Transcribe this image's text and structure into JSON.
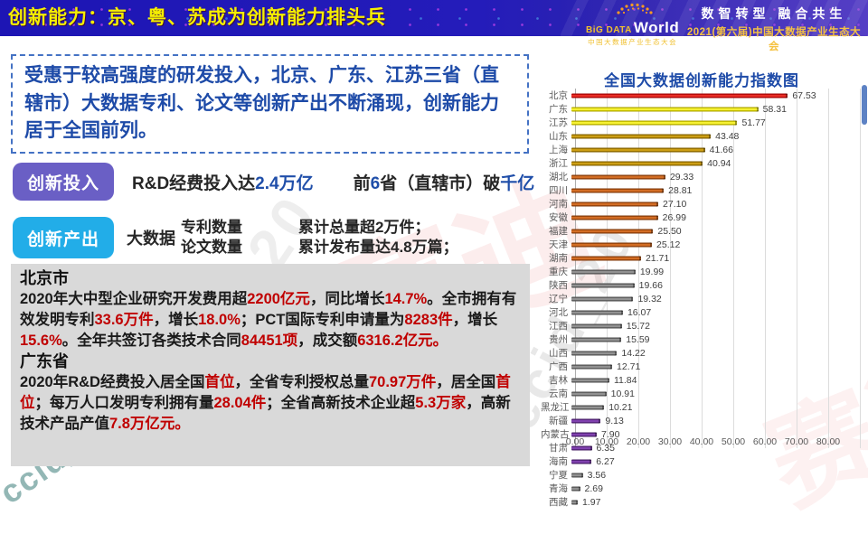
{
  "header": {
    "title": "创新能力：京、粤、苏成为创新能力排头兵",
    "logo": {
      "name_top": "BiG DATA",
      "name_main": "World",
      "subtitle": "中国大数据产业生态大会"
    },
    "slogan": "数智转型 融合共生",
    "event": "2021(第六届)中国大数据产业生态大会"
  },
  "summary": {
    "text": "受惠于较高强度的研发投入，北京、广东、江苏三省（直辖市）大数据专利、论文等创新产出不断涌现，创新能力居于全国前列。"
  },
  "investment": {
    "badge": "创新投入",
    "part1": [
      {
        "t": "R&D经费投入达"
      },
      {
        "t": "2.4万亿",
        "s": "blue"
      }
    ],
    "part2": [
      {
        "t": "前"
      },
      {
        "t": "6",
        "s": "blue"
      },
      {
        "t": "省（直辖市）破"
      },
      {
        "t": "千亿",
        "s": "blue"
      }
    ]
  },
  "output": {
    "badge": "创新产出",
    "prefix": "大数据",
    "metrics": [
      "专利数量",
      "论文数量"
    ],
    "results": [
      "累计总量超2万件；",
      "累计发布量达4.8万篇；"
    ]
  },
  "detail_box": {
    "beijing_title": "北京市",
    "beijing": [
      {
        "t": "2020年大中型企业研究开发费用超"
      },
      {
        "t": "2200亿元",
        "s": "red"
      },
      {
        "t": "，同比增长"
      },
      {
        "t": "14.7%",
        "s": "red"
      },
      {
        "t": "。全市拥有有效发明专利"
      },
      {
        "t": "33.6万件",
        "s": "red"
      },
      {
        "t": "，增长"
      },
      {
        "t": "18.0%",
        "s": "red"
      },
      {
        "t": "；PCT国际专利申请量为"
      },
      {
        "t": "8283件",
        "s": "red"
      },
      {
        "t": "，增长"
      },
      {
        "t": "15.6%",
        "s": "red"
      },
      {
        "t": "。全年共签订各类技术合同"
      },
      {
        "t": "84451项",
        "s": "red"
      },
      {
        "t": "，成交额"
      },
      {
        "t": "6316.2亿元。",
        "s": "red"
      }
    ],
    "guangdong_title": "广东省",
    "guangdong": [
      {
        "t": "2020年R&D经费投入居全国"
      },
      {
        "t": "首位",
        "s": "red"
      },
      {
        "t": "，全省专利授权总量"
      },
      {
        "t": "70.97万件",
        "s": "red"
      },
      {
        "t": "，居全国"
      },
      {
        "t": "首位",
        "s": "red"
      },
      {
        "t": "；每万人口发明专利拥有量"
      },
      {
        "t": "28.04件",
        "s": "red"
      },
      {
        "t": "；全省高新技术企业超"
      },
      {
        "t": "5.3万家",
        "s": "red"
      },
      {
        "t": "，高新技术产品产值"
      },
      {
        "t": "7.8万亿元。",
        "s": "red"
      }
    ]
  },
  "chart_data": {
    "type": "bar",
    "orientation": "horizontal",
    "title": "全国大数据创新能力指数图",
    "categories": [
      "北京",
      "广东",
      "江苏",
      "山东",
      "上海",
      "浙江",
      "湖北",
      "四川",
      "河南",
      "安徽",
      "福建",
      "天津",
      "湖南",
      "重庆",
      "陕西",
      "辽宁",
      "河北",
      "江西",
      "贵州",
      "山西",
      "广西",
      "吉林",
      "云南",
      "黑龙江",
      "新疆",
      "内蒙古",
      "甘肃",
      "海南",
      "宁夏",
      "青海",
      "西藏"
    ],
    "values": [
      67.53,
      58.31,
      51.77,
      43.48,
      41.66,
      40.94,
      29.33,
      28.81,
      27.1,
      26.99,
      25.5,
      25.12,
      21.71,
      19.99,
      19.66,
      19.32,
      16.07,
      15.72,
      15.59,
      14.22,
      12.71,
      11.84,
      10.91,
      10.21,
      9.13,
      7.9,
      6.35,
      6.27,
      3.56,
      2.69,
      1.97
    ],
    "bar_colors": [
      "red",
      "yellow",
      "yellow",
      "darkyellow",
      "darkyellow",
      "darkyellow",
      "orange",
      "orange",
      "orange",
      "orange",
      "orange",
      "orange",
      "orange",
      "gray",
      "gray",
      "gray",
      "gray",
      "gray",
      "gray",
      "gray",
      "gray",
      "gray",
      "gray",
      "gray",
      "purple",
      "purple",
      "purple",
      "purple",
      "gray",
      "gray",
      "gray"
    ],
    "palette": {
      "red": {
        "dark": "#9c0606",
        "base": "#e01111",
        "light": "#f34b3b"
      },
      "yellow": {
        "dark": "#a8a000",
        "base": "#f0ea00",
        "light": "#fbf768"
      },
      "darkyellow": {
        "dark": "#7f5f00",
        "base": "#bf8f00",
        "light": "#d9ad2a"
      },
      "orange": {
        "dark": "#7f3a0b",
        "base": "#c55a11",
        "light": "#e08038"
      },
      "gray": {
        "dark": "#4d4d4d",
        "base": "#808080",
        "light": "#a3a3a3"
      },
      "purple": {
        "dark": "#471f66",
        "base": "#7030a0",
        "light": "#9153bd"
      }
    },
    "xlim": [
      0,
      90
    ],
    "xticks": [
      "0.00",
      "10.00",
      "20.00",
      "30.00",
      "40.00",
      "50.00",
      "60.00",
      "70.00",
      "80.00"
    ],
    "grid": true,
    "legend": "none",
    "value_labels": true
  },
  "watermarks": {
    "gray1": "ccid_20",
    "gray2": "ccid_20",
    "teal": "ccid_20",
    "red": "赛迪"
  },
  "colors": {
    "accent_blue": "#1e4ba8",
    "highlight_red": "#c00000",
    "badge_purple": "#6a5fc5",
    "badge_cyan": "#22ade8",
    "header_title_yellow": "#f5ef00",
    "detail_box_bg": "#d9d9d9"
  }
}
